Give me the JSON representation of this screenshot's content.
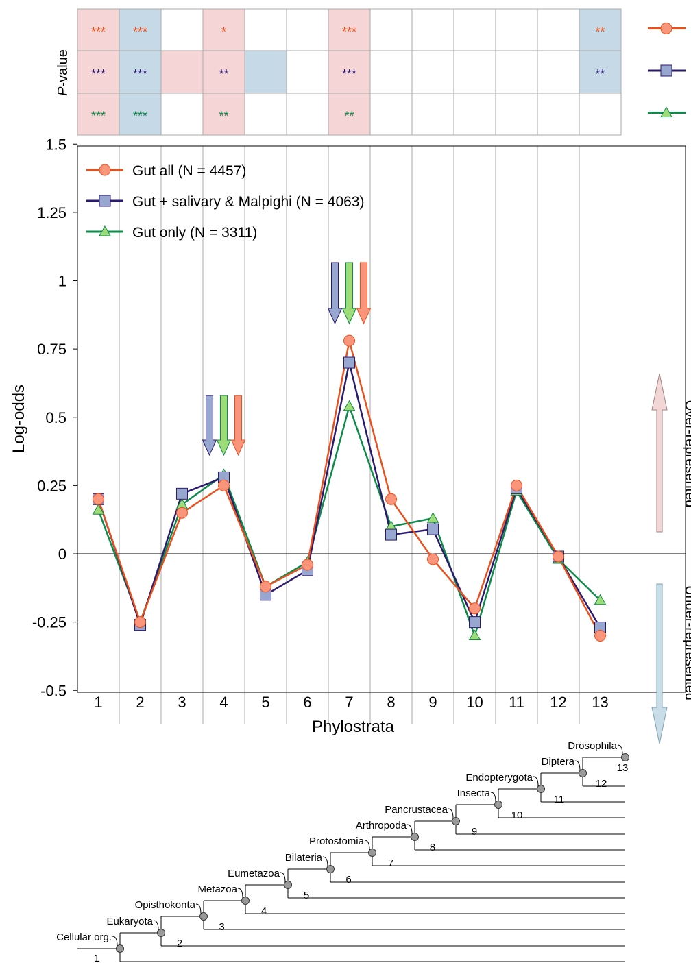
{
  "colors": {
    "gut_all": "#e8501d",
    "gut_all_fill": "#f8957b",
    "gut_sal": "#2c1a6e",
    "gut_sal_fill": "#98a7cf",
    "gut_only": "#0e8a4a",
    "gut_only_fill": "#9ddc79",
    "over_bg": "#f5d5d5",
    "under_bg": "#c5dae6",
    "over_arrow": "#f2d5d5",
    "under_arrow": "#c8dde8",
    "grid": "#aaaaaa"
  },
  "pvalue": {
    "label_italic": "P",
    "label_rest": "-value",
    "rows": [
      {
        "series": "gut_all",
        "stars": [
          "***",
          "***",
          "",
          "*",
          "",
          "",
          "***",
          "",
          "",
          "",
          "",
          "",
          "**"
        ],
        "shade": [
          "over",
          "under",
          "",
          "over",
          "",
          "",
          "over",
          "",
          "",
          "",
          "",
          "",
          "under"
        ]
      },
      {
        "series": "gut_sal",
        "stars": [
          "***",
          "***",
          "",
          "**",
          "",
          "",
          "***",
          "",
          "",
          "",
          "",
          "",
          "**"
        ],
        "shade": [
          "over",
          "under",
          "over",
          "over",
          "under",
          "",
          "over",
          "",
          "",
          "",
          "",
          "",
          "under"
        ]
      },
      {
        "series": "gut_only",
        "stars": [
          "***",
          "***",
          "",
          "**",
          "",
          "",
          "**",
          "",
          "",
          "",
          "",
          "",
          ""
        ],
        "shade": [
          "over",
          "under",
          "",
          "over",
          "",
          "",
          "over",
          "",
          "",
          "",
          "",
          "",
          ""
        ]
      }
    ]
  },
  "chart_data": {
    "type": "line",
    "x": [
      1,
      2,
      3,
      4,
      5,
      6,
      7,
      8,
      9,
      10,
      11,
      12,
      13
    ],
    "xlabel": "Phylostrata",
    "ylabel": "Log-odds",
    "ylim": [
      -0.5,
      1.5
    ],
    "yticks": [
      -0.5,
      -0.25,
      0,
      0.25,
      0.5,
      0.75,
      1,
      1.25,
      1.5
    ],
    "ytick_labels": [
      "-0.5",
      "-0.25",
      "0",
      "0.25",
      "0.5",
      "0.75",
      "1",
      "1.25",
      "1.5"
    ],
    "legend_position": "top-left",
    "series": [
      {
        "key": "gut_only",
        "name": "Gut only (N = 3311)",
        "marker": "triangle",
        "values": [
          0.16,
          -0.25,
          0.18,
          0.29,
          -0.12,
          -0.03,
          0.54,
          0.1,
          0.13,
          -0.3,
          0.23,
          -0.02,
          -0.17
        ]
      },
      {
        "key": "gut_sal",
        "name": "Gut + salivary & Malpighi (N = 4063)",
        "marker": "square",
        "values": [
          0.2,
          -0.26,
          0.22,
          0.28,
          -0.15,
          -0.06,
          0.7,
          0.07,
          0.09,
          -0.25,
          0.24,
          -0.01,
          -0.27
        ]
      },
      {
        "key": "gut_all",
        "name": "Gut all (N = 4457)",
        "marker": "circle",
        "values": [
          0.2,
          -0.25,
          0.15,
          0.25,
          -0.12,
          -0.04,
          0.78,
          0.2,
          -0.02,
          -0.2,
          0.25,
          -0.01,
          -0.3
        ]
      }
    ],
    "legend_order": [
      "gut_all",
      "gut_sal",
      "gut_only"
    ],
    "highlight_strata": [
      4,
      7
    ]
  },
  "side_labels": {
    "over": "Over-represented",
    "under": "Under-represented"
  },
  "tree": {
    "taxa": [
      "Cellular org.",
      "Eukaryota",
      "Opisthokonta",
      "Metazoa",
      "Eumetazoa",
      "Bilateria",
      "Protostomia",
      "Arthropoda",
      "Pancrustacea",
      "Insecta",
      "Endopterygota",
      "Diptera",
      "Drosophila"
    ],
    "stratum_numbers": [
      "1",
      "2",
      "3",
      "4",
      "5",
      "6",
      "7",
      "8",
      "9",
      "10",
      "11",
      "12",
      "13"
    ]
  }
}
